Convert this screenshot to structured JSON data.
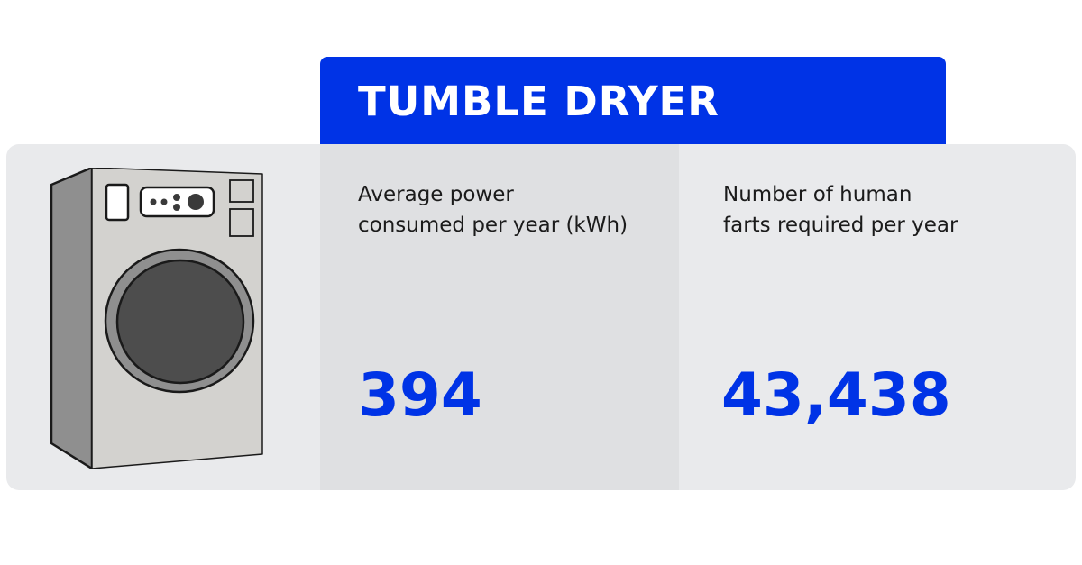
{
  "title": "TUMBLE DRYER",
  "power": {
    "label": "Average power\nconsumed per year (kWh)",
    "value": "394"
  },
  "farts": {
    "label": "Number of human\nfarts required per year",
    "value": "43,438"
  },
  "colors": {
    "accent": "#0033e6",
    "panel": "#e9eaec",
    "panel_shaded": "#dfe0e2"
  },
  "illustration": "tumble-dryer-icon"
}
